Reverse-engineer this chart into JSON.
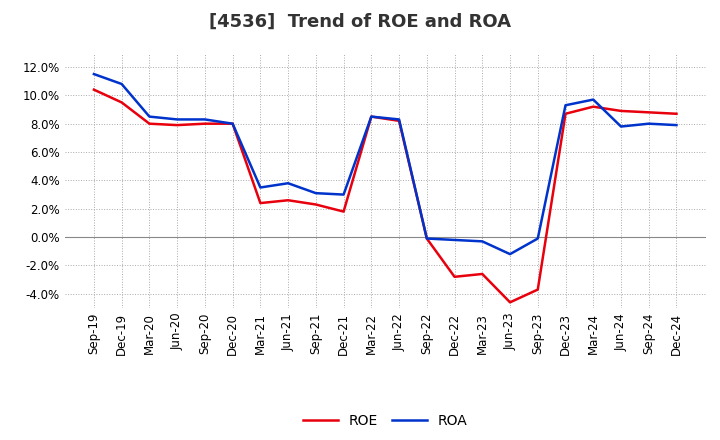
{
  "title": "[4536]  Trend of ROE and ROA",
  "labels": [
    "Sep-19",
    "Dec-19",
    "Mar-20",
    "Jun-20",
    "Sep-20",
    "Dec-20",
    "Mar-21",
    "Jun-21",
    "Sep-21",
    "Dec-21",
    "Mar-22",
    "Jun-22",
    "Sep-22",
    "Dec-22",
    "Mar-23",
    "Jun-23",
    "Sep-23",
    "Dec-23",
    "Mar-24",
    "Jun-24",
    "Sep-24",
    "Dec-24"
  ],
  "ROE": [
    10.4,
    9.5,
    8.0,
    7.9,
    8.0,
    8.0,
    2.4,
    2.6,
    2.3,
    1.8,
    8.5,
    8.2,
    -0.1,
    -2.8,
    -2.6,
    -4.6,
    -3.7,
    8.7,
    9.2,
    8.9,
    8.8,
    8.7
  ],
  "ROA": [
    11.5,
    10.8,
    8.5,
    8.3,
    8.3,
    8.0,
    3.5,
    3.8,
    3.1,
    3.0,
    8.5,
    8.3,
    -0.1,
    -0.2,
    -0.3,
    -1.2,
    -0.1,
    9.3,
    9.7,
    7.8,
    8.0,
    7.9
  ],
  "roe_color": "#e8000d",
  "roa_color": "#0033cc",
  "ylim": [
    -5.0,
    13.0
  ],
  "yticks": [
    -4.0,
    -2.0,
    0.0,
    2.0,
    4.0,
    6.0,
    8.0,
    10.0,
    12.0
  ],
  "background_color": "#ffffff",
  "grid_color": "#aaaaaa",
  "line_width": 1.8,
  "title_fontsize": 13,
  "tick_fontsize": 8.5,
  "legend_fontsize": 10
}
